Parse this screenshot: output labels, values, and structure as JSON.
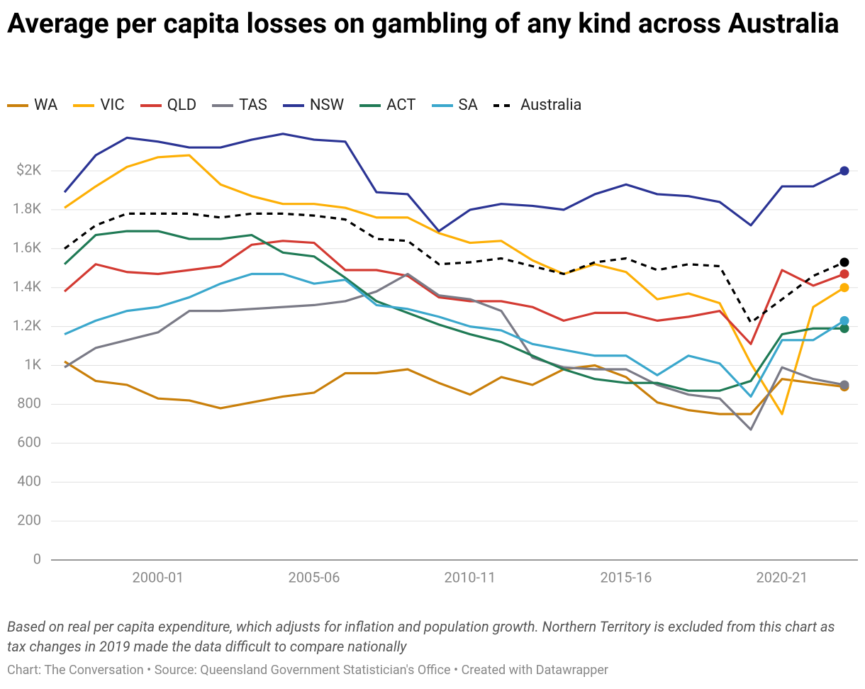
{
  "chart_data": {
    "type": "line",
    "title": "Average per capita losses on gambling of any kind across Australia",
    "note": "Based on real per capita expenditure, which adjusts for inflation and population growth. Northern Territory is excluded from this chart as tax changes in 2019 made the data difficult to compare nationally",
    "credit": "Chart: The Conversation • Source: Queensland Government Statistician's Office • Created with Datawrapper",
    "categories": [
      null,
      null,
      null,
      "2000-01",
      null,
      null,
      null,
      null,
      "2005-06",
      null,
      null,
      null,
      null,
      "2010-11",
      null,
      null,
      null,
      null,
      "2015-16",
      null,
      null,
      null,
      null,
      "2020-21",
      null,
      null
    ],
    "ylim": [
      0,
      2400
    ],
    "yticks": [
      0,
      200,
      400,
      600,
      800,
      {
        "value": 1000,
        "label": "1K"
      },
      {
        "value": 1200,
        "label": "1.2K"
      },
      {
        "value": 1400,
        "label": "1.4K"
      },
      {
        "value": 1600,
        "label": "1.6K"
      },
      {
        "value": 1800,
        "label": "1.8K"
      },
      {
        "value": 2000,
        "label": "$2K"
      }
    ],
    "grid": true,
    "series": [
      {
        "name": "WA",
        "color": "#c97f0a",
        "values": [
          1020,
          920,
          900,
          830,
          820,
          780,
          810,
          840,
          860,
          960,
          960,
          980,
          910,
          850,
          940,
          900,
          980,
          1000,
          940,
          810,
          770,
          750,
          750,
          930,
          910,
          890
        ]
      },
      {
        "name": "VIC",
        "color": "#fdaf05",
        "values": [
          1810,
          1920,
          2020,
          2070,
          2080,
          1930,
          1870,
          1830,
          1830,
          1810,
          1760,
          1760,
          1680,
          1630,
          1640,
          1540,
          1470,
          1520,
          1480,
          1340,
          1370,
          1320,
          1010,
          750,
          1300,
          1400
        ]
      },
      {
        "name": "QLD",
        "color": "#d33a32",
        "values": [
          1380,
          1520,
          1480,
          1470,
          1490,
          1510,
          1620,
          1640,
          1630,
          1490,
          1490,
          1460,
          1350,
          1330,
          1330,
          1300,
          1230,
          1270,
          1270,
          1230,
          1250,
          1280,
          1110,
          1490,
          1410,
          1470
        ]
      },
      {
        "name": "TAS",
        "color": "#7a7a86",
        "values": [
          990,
          1090,
          1130,
          1170,
          1280,
          1280,
          1290,
          1300,
          1310,
          1330,
          1380,
          1470,
          1360,
          1340,
          1280,
          1040,
          990,
          980,
          980,
          900,
          850,
          830,
          670,
          990,
          930,
          900
        ]
      },
      {
        "name": "NSW",
        "color": "#2b3494",
        "values": [
          1890,
          2080,
          2170,
          2150,
          2120,
          2120,
          2160,
          2190,
          2160,
          2150,
          1890,
          1880,
          1690,
          1800,
          1830,
          1820,
          1800,
          1880,
          1930,
          1880,
          1870,
          1840,
          1720,
          1920,
          1920,
          2000
        ]
      },
      {
        "name": "ACT",
        "color": "#1f7a55",
        "values": [
          1520,
          1670,
          1690,
          1690,
          1650,
          1650,
          1670,
          1580,
          1560,
          1450,
          1330,
          1270,
          1210,
          1160,
          1120,
          1050,
          980,
          930,
          910,
          910,
          870,
          870,
          920,
          1160,
          1190,
          1190
        ]
      },
      {
        "name": "SA",
        "color": "#3aa7cc",
        "values": [
          1160,
          1230,
          1280,
          1300,
          1350,
          1420,
          1470,
          1470,
          1420,
          1440,
          1310,
          1290,
          1250,
          1200,
          1180,
          1110,
          1080,
          1050,
          1050,
          950,
          1050,
          1010,
          840,
          1130,
          1130,
          1230
        ]
      },
      {
        "name": "Australia",
        "color": "#000000",
        "dashed": true,
        "values": [
          1600,
          1720,
          1780,
          1780,
          1780,
          1760,
          1780,
          1780,
          1770,
          1750,
          1650,
          1640,
          1520,
          1530,
          1550,
          1510,
          1470,
          1530,
          1550,
          1490,
          1520,
          1510,
          1220,
          1340,
          1460,
          1530
        ]
      }
    ]
  }
}
